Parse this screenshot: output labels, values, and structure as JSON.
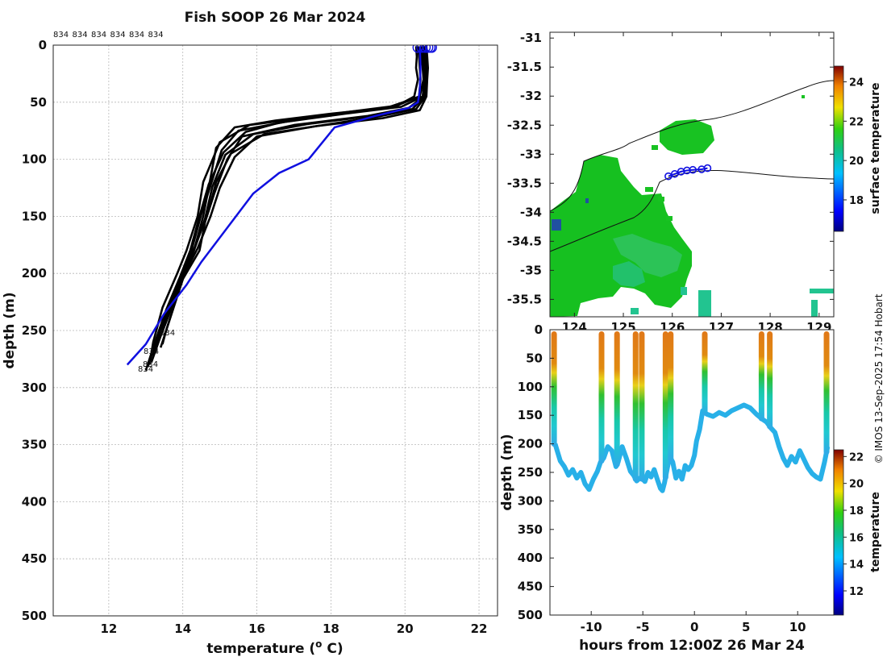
{
  "credit": "© IMOS 13-Sep-2025 17:54 Hobart",
  "chart_data": [
    {
      "type": "line",
      "title": "Fish SOOP 26 Mar 2024",
      "xlabel": "temperature (",
      "xlabel_sup": "o",
      "xlabel_tail": " C)",
      "ylabel": "depth (m)",
      "xlim": [
        10.5,
        22.5
      ],
      "ylim": [
        0,
        500
      ],
      "y_reversed": true,
      "xticks": [
        12,
        14,
        16,
        18,
        20,
        22
      ],
      "yticks": [
        0,
        50,
        100,
        150,
        200,
        250,
        300,
        350,
        400,
        450,
        500
      ],
      "top_labels": [
        "834",
        "834",
        "834",
        "834",
        "834",
        "834"
      ],
      "end_labels": [
        "834",
        "834",
        "834",
        "834"
      ],
      "profiles_color": "#000000",
      "profiles": [
        {
          "name": "p1",
          "t": [
            20.3,
            20.32,
            20.3,
            20.35,
            20.25,
            19.8,
            18.6,
            17.2,
            15.8,
            15.0,
            14.55,
            14.4,
            14.1,
            13.85,
            13.45,
            13.2,
            13.1
          ],
          "d": [
            1,
            10,
            20,
            30,
            45,
            53,
            58,
            64,
            70,
            85,
            120,
            150,
            180,
            200,
            230,
            260,
            280
          ]
        },
        {
          "name": "p2",
          "t": [
            20.4,
            20.45,
            20.48,
            20.5,
            20.4,
            19.5,
            18.0,
            16.5,
            15.4,
            14.9,
            14.7,
            14.55,
            14.3,
            13.9,
            13.6,
            13.35,
            13.25
          ],
          "d": [
            1,
            10,
            20,
            30,
            45,
            55,
            60,
            66,
            72,
            90,
            125,
            150,
            180,
            205,
            230,
            255,
            270
          ]
        },
        {
          "name": "p3",
          "t": [
            20.5,
            20.52,
            20.55,
            20.55,
            20.5,
            20.1,
            19.0,
            17.0,
            15.6,
            15.2,
            14.85,
            14.6,
            14.45,
            14.0,
            13.75,
            13.5,
            13.4
          ],
          "d": [
            1,
            10,
            20,
            30,
            45,
            55,
            62,
            70,
            80,
            100,
            130,
            155,
            180,
            205,
            230,
            255,
            265
          ]
        },
        {
          "name": "p4",
          "t": [
            20.55,
            20.58,
            20.6,
            20.58,
            20.55,
            20.3,
            19.2,
            17.8,
            16.2,
            15.3,
            14.9,
            14.7,
            14.35,
            14.0,
            13.7,
            13.4,
            13.15
          ],
          "d": [
            1,
            10,
            20,
            30,
            45,
            56,
            63,
            70,
            78,
            95,
            120,
            145,
            175,
            200,
            230,
            255,
            278
          ]
        },
        {
          "name": "p5",
          "t": [
            20.45,
            20.48,
            20.5,
            20.52,
            20.48,
            19.9,
            18.4,
            16.8,
            15.5,
            15.05,
            14.8,
            14.5,
            14.25,
            13.95,
            13.6,
            13.3,
            13.05
          ],
          "d": [
            1,
            10,
            20,
            30,
            45,
            54,
            60,
            67,
            75,
            92,
            118,
            148,
            178,
            205,
            232,
            258,
            282
          ]
        },
        {
          "name": "p6",
          "t": [
            20.58,
            20.6,
            20.62,
            20.6,
            20.58,
            20.4,
            19.4,
            17.6,
            16.0,
            15.4,
            15.0,
            14.75,
            14.4,
            14.05,
            13.8,
            13.55,
            13.45
          ],
          "d": [
            1,
            10,
            20,
            30,
            45,
            57,
            64,
            71,
            80,
            98,
            125,
            150,
            178,
            200,
            225,
            250,
            262
          ]
        },
        {
          "name": "p7",
          "t": [
            20.35,
            20.38,
            20.4,
            20.42,
            20.38,
            19.7,
            18.2,
            16.6,
            15.7,
            15.1,
            14.7,
            14.45,
            14.2,
            13.9,
            13.55,
            13.25,
            13.0
          ],
          "d": [
            1,
            10,
            20,
            30,
            45,
            54,
            60,
            68,
            76,
            94,
            122,
            150,
            180,
            205,
            232,
            260,
            285
          ]
        },
        {
          "name": "p8",
          "t": [
            20.5,
            20.55,
            20.58,
            20.56,
            20.52,
            20.2,
            19.1,
            17.4,
            15.9,
            15.15,
            14.8,
            14.6,
            14.3,
            14.0,
            13.65,
            13.35,
            13.2
          ],
          "d": [
            1,
            10,
            20,
            30,
            45,
            56,
            62,
            69,
            78,
            96,
            124,
            152,
            180,
            205,
            232,
            258,
            272
          ]
        }
      ],
      "mean_profile": {
        "name": "mean",
        "color": "#1010e0",
        "t": [
          20.4,
          20.42,
          20.4,
          20.35,
          20.1,
          19.2,
          18.1,
          17.4,
          16.6,
          15.9,
          15.2,
          14.5,
          14.1,
          13.5,
          13.0,
          12.5
        ],
        "d": [
          1,
          20,
          40,
          50,
          55,
          62,
          72,
          100,
          112,
          130,
          160,
          190,
          210,
          235,
          262,
          280
        ]
      },
      "surface_circles_t": [
        20.35,
        20.45,
        20.55,
        20.62,
        20.68,
        20.72
      ]
    },
    {
      "type": "heatmap",
      "subtype": "map",
      "xlim": [
        123.5,
        129.3
      ],
      "ylim": [
        -35.8,
        -30.9
      ],
      "xticks": [
        124,
        125,
        126,
        127,
        128,
        129
      ],
      "yticks": [
        -31,
        -31.5,
        -32,
        -32.5,
        -33,
        -33.5,
        -34,
        -34.5,
        -35,
        -35.5
      ],
      "colorbar": {
        "label": "surface temperature",
        "range": [
          16.4,
          24.8
        ],
        "ticks": [
          18,
          20,
          22,
          24
        ]
      },
      "track": {
        "color": "#1010e0",
        "lon": [
          125.92,
          126.05,
          126.18,
          126.3,
          126.42,
          126.6,
          126.72
        ],
        "lat": [
          -33.38,
          -33.34,
          -33.3,
          -33.28,
          -33.27,
          -33.26,
          -33.24
        ]
      }
    },
    {
      "type": "scatter",
      "subtype": "section",
      "xlabel": "hours from 12:00Z 26 Mar 24",
      "ylabel": "depth (m)",
      "xlim": [
        -14,
        13.5
      ],
      "ylim": [
        0,
        500
      ],
      "y_reversed": true,
      "xticks": [
        -10,
        -5,
        0,
        5,
        10
      ],
      "yticks": [
        0,
        50,
        100,
        150,
        200,
        250,
        300,
        350,
        400,
        450,
        500
      ],
      "colorbar": {
        "label": "temperature",
        "range": [
          10.2,
          22.5
        ],
        "ticks": [
          12,
          14,
          16,
          18,
          20,
          22
        ]
      },
      "casts": [
        -13.6,
        -9.0,
        -7.5,
        -5.7,
        -5.1,
        -2.8,
        -2.3,
        1.0,
        6.5,
        7.3,
        12.8
      ],
      "bottom_path": {
        "t": [
          -13.5,
          -13.0,
          -12.6,
          -12.2,
          -11.8,
          -11.4,
          -11.0,
          -10.6,
          -10.2,
          -9.8,
          -9.4,
          -9.1,
          -8.8,
          -8.4,
          -8.0,
          -7.6,
          -7.4,
          -7.0,
          -6.6,
          -6.2,
          -5.9,
          -5.6,
          -5.3,
          -5.0,
          -4.8,
          -4.5,
          -4.2,
          -3.9,
          -3.6,
          -3.3,
          -3.1,
          -2.9,
          -2.6,
          -2.4,
          -2.1,
          -1.8,
          -1.5,
          -1.2,
          -0.9,
          -0.6,
          -0.3,
          0.0,
          0.2,
          0.5,
          0.8,
          1.2,
          1.8,
          2.4,
          3.0,
          3.6,
          4.2,
          4.8,
          5.4,
          6.0,
          6.6,
          7.0,
          7.4,
          7.8,
          8.2,
          8.6,
          9.0,
          9.4,
          9.8,
          10.2,
          10.6,
          11.0,
          11.4,
          11.8,
          12.2,
          12.6,
          12.9
        ],
        "d": [
          200,
          230,
          240,
          255,
          245,
          260,
          250,
          270,
          280,
          262,
          248,
          232,
          225,
          205,
          212,
          240,
          232,
          205,
          225,
          248,
          255,
          265,
          260,
          262,
          266,
          250,
          258,
          245,
          262,
          278,
          282,
          268,
          240,
          222,
          232,
          260,
          248,
          262,
          238,
          245,
          238,
          220,
          195,
          175,
          142,
          148,
          152,
          145,
          150,
          142,
          137,
          132,
          137,
          148,
          157,
          162,
          172,
          180,
          205,
          225,
          238,
          222,
          232,
          212,
          227,
          242,
          252,
          258,
          262,
          232,
          205
        ]
      }
    }
  ]
}
